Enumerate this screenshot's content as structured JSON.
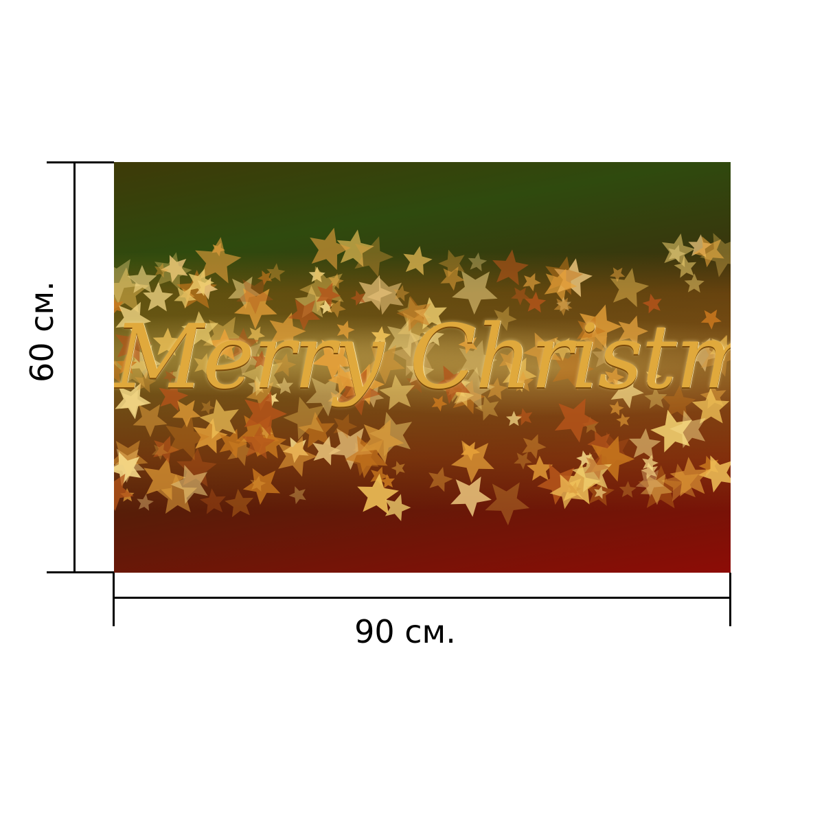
{
  "dimensions": {
    "height_label": "60 см.",
    "width_label": "90 см."
  },
  "banner": {
    "text": "Merry Christmas"
  },
  "colors": {
    "top_green": "#1a6a0c",
    "bottom_red": "#9a0a06",
    "gold": "#e0a93c"
  }
}
